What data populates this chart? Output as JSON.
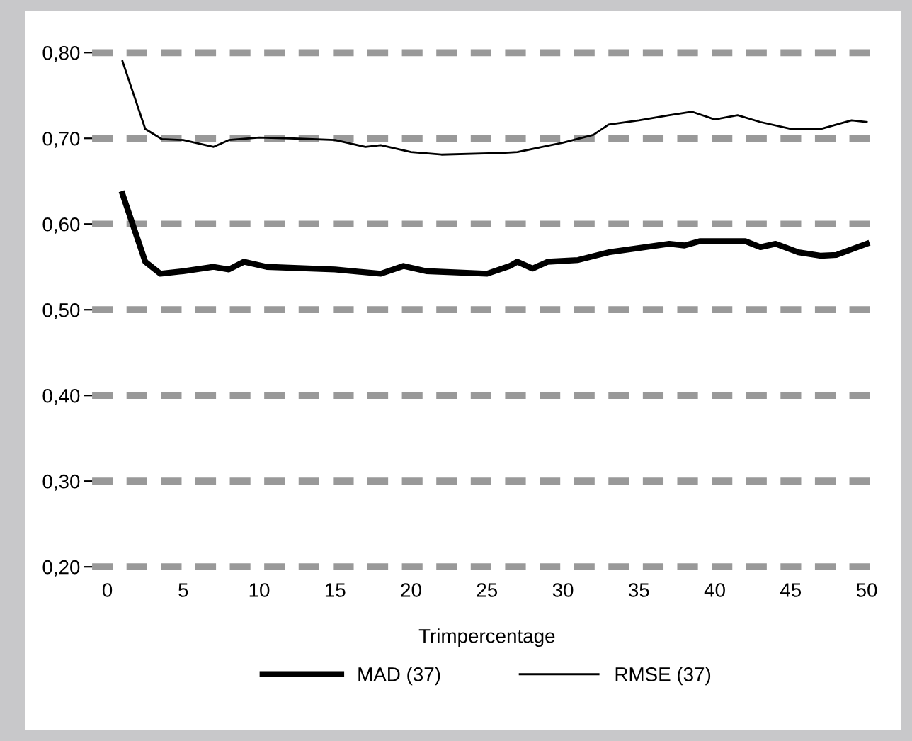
{
  "chart_data": {
    "type": "line",
    "xlabel": "Trimpercentage",
    "xlim": [
      -1,
      51
    ],
    "xticks": [
      0,
      5,
      10,
      15,
      20,
      25,
      30,
      35,
      40,
      45,
      50
    ],
    "ylim": [
      0.2,
      0.8
    ],
    "yticks": [
      {
        "value": 0.2,
        "label": "0,20"
      },
      {
        "value": 0.3,
        "label": "0,30"
      },
      {
        "value": 0.4,
        "label": "0,40"
      },
      {
        "value": 0.5,
        "label": "0,50"
      },
      {
        "value": 0.6,
        "label": "0,60"
      },
      {
        "value": 0.7,
        "label": "0,70"
      },
      {
        "value": 0.8,
        "label": "0,80"
      }
    ],
    "grid": "y",
    "legend": "bottom",
    "marker": "none",
    "line_style": "solid",
    "series": [
      {
        "name": "MAD (37)",
        "color": "#000000",
        "x": [
          1,
          2.5,
          3.5,
          5,
          7,
          8,
          9,
          10.5,
          15,
          18,
          19.5,
          21,
          25,
          26.5,
          27,
          28,
          29,
          31,
          33,
          35,
          37,
          38,
          39,
          42,
          43,
          44,
          45.5,
          47,
          48,
          50
        ],
        "values": [
          0.635,
          0.556,
          0.542,
          0.545,
          0.55,
          0.547,
          0.556,
          0.55,
          0.547,
          0.542,
          0.551,
          0.545,
          0.542,
          0.551,
          0.556,
          0.548,
          0.556,
          0.558,
          0.567,
          0.572,
          0.577,
          0.575,
          0.58,
          0.58,
          0.573,
          0.577,
          0.567,
          0.563,
          0.564,
          0.577
        ]
      },
      {
        "name": "RMSE (37)",
        "color": "#000000",
        "x": [
          1,
          2.5,
          3.6,
          5,
          7,
          8,
          10,
          12,
          15,
          17,
          18,
          20,
          22,
          26,
          27,
          30,
          32,
          33,
          35,
          37,
          38.5,
          40,
          41.5,
          43,
          45,
          47,
          49,
          50
        ],
        "values": [
          0.79,
          0.711,
          0.699,
          0.698,
          0.69,
          0.698,
          0.701,
          0.7,
          0.698,
          0.69,
          0.692,
          0.684,
          0.681,
          0.683,
          0.684,
          0.695,
          0.704,
          0.716,
          0.721,
          0.727,
          0.731,
          0.722,
          0.727,
          0.719,
          0.711,
          0.711,
          0.721,
          0.719
        ]
      }
    ]
  }
}
